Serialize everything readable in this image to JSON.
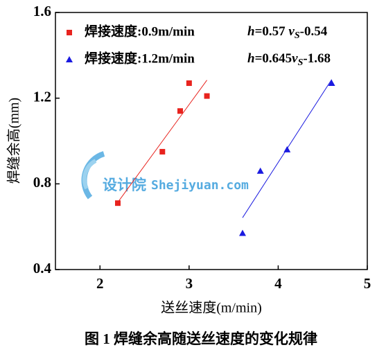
{
  "chart_data": {
    "type": "scatter",
    "xlabel": "送丝速度(m/min)",
    "ylabel": "焊缝余高(mm)",
    "caption": "图 1 焊缝余高随送丝速度的变化规律",
    "watermark": [
      "设计院",
      "Shejiyuan.com"
    ],
    "xlim": [
      1.5,
      5
    ],
    "xticks": [
      2,
      3,
      4,
      5
    ],
    "ylim": [
      0.4,
      1.6
    ],
    "yticks": [
      {
        "value": 0.4,
        "label": "0.4"
      },
      {
        "value": 0.8,
        "label": "0.8"
      },
      {
        "value": 1.2,
        "label": "1.2"
      },
      {
        "value": 1.6,
        "label": "1.6"
      }
    ],
    "series": [
      {
        "name": "焊接速度:0.9m/min",
        "color": "#e8231e",
        "marker": "square",
        "x": [
          2.2,
          2.7,
          2.9,
          3.0,
          3.2
        ],
        "values": [
          0.71,
          0.95,
          1.14,
          1.27,
          1.21
        ],
        "fit_label": [
          "h",
          "=0.57 ",
          "v",
          "S",
          "-0.54"
        ],
        "fit": {
          "x": [
            2.2,
            3.2
          ],
          "values": [
            0.714,
            1.284
          ]
        }
      },
      {
        "name": "焊接速度:1.2m/min",
        "color": "#1a1ae0",
        "marker": "triangle",
        "x": [
          3.6,
          3.8,
          4.1,
          4.6
        ],
        "values": [
          0.57,
          0.86,
          0.96,
          1.27
        ],
        "fit_label": [
          "h",
          "=0.645",
          "v",
          "S",
          "-1.68"
        ],
        "fit": {
          "x": [
            3.6,
            4.6
          ],
          "values": [
            0.642,
            1.287
          ]
        }
      }
    ]
  }
}
